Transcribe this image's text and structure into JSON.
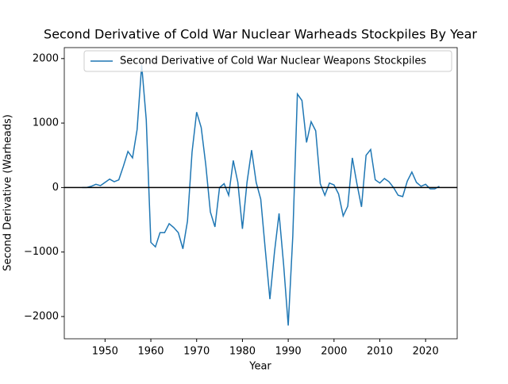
{
  "chart_data": {
    "type": "line",
    "title": "Second Derivative of Cold War Nuclear Warheads Stockpiles By Year",
    "x_label": "Year",
    "y_label": "Second Derivative (Warheads)",
    "x": [
      1945,
      1946,
      1947,
      1948,
      1949,
      1950,
      1951,
      1952,
      1953,
      1954,
      1955,
      1956,
      1957,
      1958,
      1959,
      1960,
      1961,
      1962,
      1963,
      1964,
      1965,
      1966,
      1967,
      1968,
      1969,
      1970,
      1971,
      1972,
      1973,
      1974,
      1975,
      1976,
      1977,
      1978,
      1979,
      1980,
      1981,
      1982,
      1983,
      1984,
      1985,
      1986,
      1987,
      1988,
      1989,
      1990,
      1991,
      1992,
      1993,
      1994,
      1995,
      1996,
      1997,
      1998,
      1999,
      2000,
      2001,
      2002,
      2003,
      2004,
      2005,
      2006,
      2007,
      2008,
      2009,
      2010,
      2011,
      2012,
      2013,
      2014,
      2015,
      2016,
      2017,
      2018,
      2019,
      2020,
      2021,
      2022,
      2023
    ],
    "series": [
      {
        "name": "Second Derivative of Cold War Nuclear Weapons Stockpiles",
        "color": "#1f77b4",
        "values": [
          0,
          0,
          20,
          50,
          30,
          80,
          130,
          90,
          120,
          330,
          560,
          460,
          900,
          1900,
          1050,
          -850,
          -920,
          -700,
          -700,
          -560,
          -620,
          -700,
          -950,
          -520,
          550,
          1170,
          930,
          350,
          -380,
          -610,
          0,
          60,
          -120,
          420,
          80,
          -640,
          80,
          580,
          80,
          -180,
          -970,
          -1730,
          -1000,
          -400,
          -1200,
          -2140,
          -750,
          1450,
          1350,
          700,
          1020,
          880,
          60,
          -120,
          70,
          40,
          -100,
          -440,
          -290,
          460,
          60,
          -300,
          500,
          590,
          120,
          70,
          140,
          90,
          0,
          -120,
          -140,
          100,
          240,
          80,
          20,
          50,
          -20,
          -20,
          20
        ]
      }
    ],
    "xlim": [
      1941.1,
      2026.9
    ],
    "ylim": [
      -2345,
      2170
    ],
    "xticks": [
      1950,
      1960,
      1970,
      1980,
      1990,
      2000,
      2010,
      2020
    ],
    "yticks": [
      {
        "value": -2000,
        "label": "−2000"
      },
      {
        "value": -1000,
        "label": "−1000"
      },
      0,
      1000,
      2000
    ],
    "hline": 0,
    "hline_color": "#000000",
    "legend": "upper right",
    "grid": false
  }
}
